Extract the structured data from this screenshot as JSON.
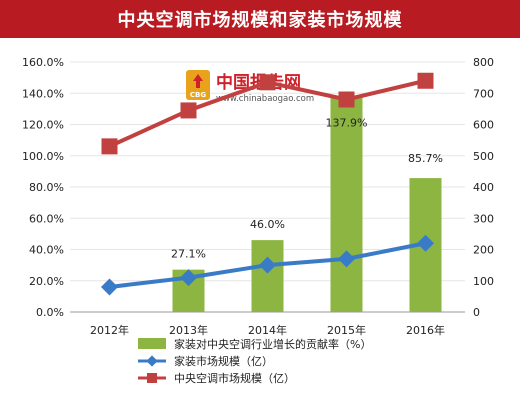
{
  "title": "中央空调市场规模和家装市场规模",
  "watermark": {
    "brand": "中国报告网",
    "url": "www.chinabaogao.com",
    "logo_text": "CBG"
  },
  "colors": {
    "title_bg": "#b81c22",
    "bar": "#8db542",
    "line_home": "#3a7bc8",
    "line_central": "#c0413f"
  },
  "chart_data": {
    "type": "bar+line",
    "categories": [
      "2012年",
      "2013年",
      "2014年",
      "2015年",
      "2016年"
    ],
    "left_axis": {
      "min": 0,
      "max": 160,
      "step": 20,
      "ticks": [
        "0.0%",
        "20.0%",
        "40.0%",
        "60.0%",
        "80.0%",
        "100.0%",
        "120.0%",
        "140.0%",
        "160.0%"
      ]
    },
    "right_axis": {
      "min": 0,
      "max": 800,
      "step": 100,
      "ticks": [
        "0",
        "100",
        "200",
        "300",
        "400",
        "500",
        "600",
        "700",
        "800"
      ]
    },
    "bar_series": {
      "name": "家装对中央空调行业增长的贡献率（%）",
      "axis": "left",
      "values": [
        null,
        27.1,
        46.0,
        137.9,
        85.7
      ],
      "labels": [
        "",
        "27.1%",
        "46.0%",
        "137.9%",
        "85.7%"
      ]
    },
    "line_series": [
      {
        "name": "家装市场规模（亿）",
        "axis": "right",
        "marker": "diamond",
        "values": [
          80,
          110,
          150,
          170,
          220
        ]
      },
      {
        "name": "中央空调市场规模（亿）",
        "axis": "right",
        "marker": "square",
        "values": [
          530,
          645,
          735,
          680,
          740
        ]
      }
    ],
    "legend_position": "bottom"
  }
}
